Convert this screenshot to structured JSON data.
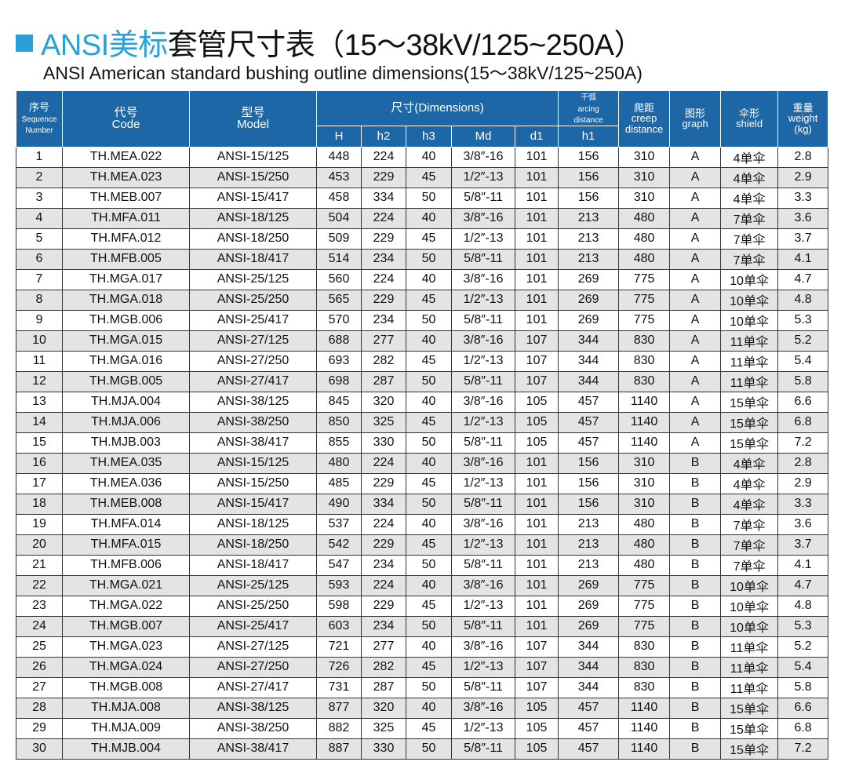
{
  "title": {
    "blue": "ANSI美标",
    "black": "套管尺寸表（15～38kV/125~250A）",
    "subtitle": "ANSI American standard bushing outline dimensions(15～38kV/125~250A)"
  },
  "colors": {
    "accent": "#2aa0d8",
    "header": "#1d67a6",
    "stripe": "#e4e4e4"
  },
  "headers": {
    "seq_cn": "序号",
    "seq_en1": "Sequence",
    "seq_en2": "Number",
    "code_cn": "代号",
    "code_en": "Code",
    "model_cn": "型号",
    "model_en": "Model",
    "dims": "尺寸(Dimensions)",
    "H": "H",
    "h2": "h2",
    "h3": "h3",
    "Md": "Md",
    "d1": "d1",
    "arc_cn": "干弧",
    "arc_en1": "arcing",
    "arc_en2": "distance",
    "h1": "h1",
    "creep_cn": "爬距",
    "creep_en1": "creep",
    "creep_en2": "distance",
    "graph_cn": "图形",
    "graph_en": "graph",
    "shield_cn": "伞形",
    "shield_en": "shield",
    "weight_cn": "重量",
    "weight_en": "weight",
    "weight_unit": "(kg)"
  },
  "rows": [
    [
      "1",
      "TH.MEA.022",
      "ANSI-15/125",
      "448",
      "224",
      "40",
      "3/8″-16",
      "101",
      "156",
      "310",
      "A",
      "4单伞",
      "2.8"
    ],
    [
      "2",
      "TH.MEA.023",
      "ANSI-15/250",
      "453",
      "229",
      "45",
      "1/2″-13",
      "101",
      "156",
      "310",
      "A",
      "4单伞",
      "2.9"
    ],
    [
      "3",
      "TH.MEB.007",
      "ANSI-15/417",
      "458",
      "334",
      "50",
      "5/8″-11",
      "101",
      "156",
      "310",
      "A",
      "4单伞",
      "3.3"
    ],
    [
      "4",
      "TH.MFA.011",
      "ANSI-18/125",
      "504",
      "224",
      "40",
      "3/8″-16",
      "101",
      "213",
      "480",
      "A",
      "7单伞",
      "3.6"
    ],
    [
      "5",
      "TH.MFA.012",
      "ANSI-18/250",
      "509",
      "229",
      "45",
      "1/2″-13",
      "101",
      "213",
      "480",
      "A",
      "7单伞",
      "3.7"
    ],
    [
      "6",
      "TH.MFB.005",
      "ANSI-18/417",
      "514",
      "234",
      "50",
      "5/8″-11",
      "101",
      "213",
      "480",
      "A",
      "7单伞",
      "4.1"
    ],
    [
      "7",
      "TH.MGA.017",
      "ANSI-25/125",
      "560",
      "224",
      "40",
      "3/8″-16",
      "101",
      "269",
      "775",
      "A",
      "10单伞",
      "4.7"
    ],
    [
      "8",
      "TH.MGA.018",
      "ANSI-25/250",
      "565",
      "229",
      "45",
      "1/2″-13",
      "101",
      "269",
      "775",
      "A",
      "10单伞",
      "4.8"
    ],
    [
      "9",
      "TH.MGB.006",
      "ANSI-25/417",
      "570",
      "234",
      "50",
      "5/8″-11",
      "101",
      "269",
      "775",
      "A",
      "10单伞",
      "5.3"
    ],
    [
      "10",
      "TH.MGA.015",
      "ANSI-27/125",
      "688",
      "277",
      "40",
      "3/8″-16",
      "107",
      "344",
      "830",
      "A",
      "11单伞",
      "5.2"
    ],
    [
      "11",
      "TH.MGA.016",
      "ANSI-27/250",
      "693",
      "282",
      "45",
      "1/2″-13",
      "107",
      "344",
      "830",
      "A",
      "11单伞",
      "5.4"
    ],
    [
      "12",
      "TH.MGB.005",
      "ANSI-27/417",
      "698",
      "287",
      "50",
      "5/8″-11",
      "107",
      "344",
      "830",
      "A",
      "11单伞",
      "5.8"
    ],
    [
      "13",
      "TH.MJA.004",
      "ANSI-38/125",
      "845",
      "320",
      "40",
      "3/8″-16",
      "105",
      "457",
      "1140",
      "A",
      "15单伞",
      "6.6"
    ],
    [
      "14",
      "TH.MJA.006",
      "ANSI-38/250",
      "850",
      "325",
      "45",
      "1/2″-13",
      "105",
      "457",
      "1140",
      "A",
      "15单伞",
      "6.8"
    ],
    [
      "15",
      "TH.MJB.003",
      "ANSI-38/417",
      "855",
      "330",
      "50",
      "5/8″-11",
      "105",
      "457",
      "1140",
      "A",
      "15单伞",
      "7.2"
    ],
    [
      "16",
      "TH.MEA.035",
      "ANSI-15/125",
      "480",
      "224",
      "40",
      "3/8″-16",
      "101",
      "156",
      "310",
      "B",
      "4单伞",
      "2.8"
    ],
    [
      "17",
      "TH.MEA.036",
      "ANSI-15/250",
      "485",
      "229",
      "45",
      "1/2″-13",
      "101",
      "156",
      "310",
      "B",
      "4单伞",
      "2.9"
    ],
    [
      "18",
      "TH.MEB.008",
      "ANSI-15/417",
      "490",
      "334",
      "50",
      "5/8″-11",
      "101",
      "156",
      "310",
      "B",
      "4单伞",
      "3.3"
    ],
    [
      "19",
      "TH.MFA.014",
      "ANSI-18/125",
      "537",
      "224",
      "40",
      "3/8″-16",
      "101",
      "213",
      "480",
      "B",
      "7单伞",
      "3.6"
    ],
    [
      "20",
      "TH.MFA.015",
      "ANSI-18/250",
      "542",
      "229",
      "45",
      "1/2″-13",
      "101",
      "213",
      "480",
      "B",
      "7单伞",
      "3.7"
    ],
    [
      "21",
      "TH.MFB.006",
      "ANSI-18/417",
      "547",
      "234",
      "50",
      "5/8″-11",
      "101",
      "213",
      "480",
      "B",
      "7单伞",
      "4.1"
    ],
    [
      "22",
      "TH.MGA.021",
      "ANSI-25/125",
      "593",
      "224",
      "40",
      "3/8″-16",
      "101",
      "269",
      "775",
      "B",
      "10单伞",
      "4.7"
    ],
    [
      "23",
      "TH.MGA.022",
      "ANSI-25/250",
      "598",
      "229",
      "45",
      "1/2″-13",
      "101",
      "269",
      "775",
      "B",
      "10单伞",
      "4.8"
    ],
    [
      "24",
      "TH.MGB.007",
      "ANSI-25/417",
      "603",
      "234",
      "50",
      "5/8″-11",
      "101",
      "269",
      "775",
      "B",
      "10单伞",
      "5.3"
    ],
    [
      "25",
      "TH.MGA.023",
      "ANSI-27/125",
      "721",
      "277",
      "40",
      "3/8″-16",
      "107",
      "344",
      "830",
      "B",
      "11单伞",
      "5.2"
    ],
    [
      "26",
      "TH.MGA.024",
      "ANSI-27/250",
      "726",
      "282",
      "45",
      "1/2″-13",
      "107",
      "344",
      "830",
      "B",
      "11单伞",
      "5.4"
    ],
    [
      "27",
      "TH.MGB.008",
      "ANSI-27/417",
      "731",
      "287",
      "50",
      "5/8″-11",
      "107",
      "344",
      "830",
      "B",
      "11单伞",
      "5.8"
    ],
    [
      "28",
      "TH.MJA.008",
      "ANSI-38/125",
      "877",
      "320",
      "40",
      "3/8″-16",
      "105",
      "457",
      "1140",
      "B",
      "15单伞",
      "6.6"
    ],
    [
      "29",
      "TH.MJA.009",
      "ANSI-38/250",
      "882",
      "325",
      "45",
      "1/2″-13",
      "105",
      "457",
      "1140",
      "B",
      "15单伞",
      "6.8"
    ],
    [
      "30",
      "TH.MJB.004",
      "ANSI-38/417",
      "887",
      "330",
      "50",
      "5/8″-11",
      "105",
      "457",
      "1140",
      "B",
      "15单伞",
      "7.2"
    ]
  ]
}
